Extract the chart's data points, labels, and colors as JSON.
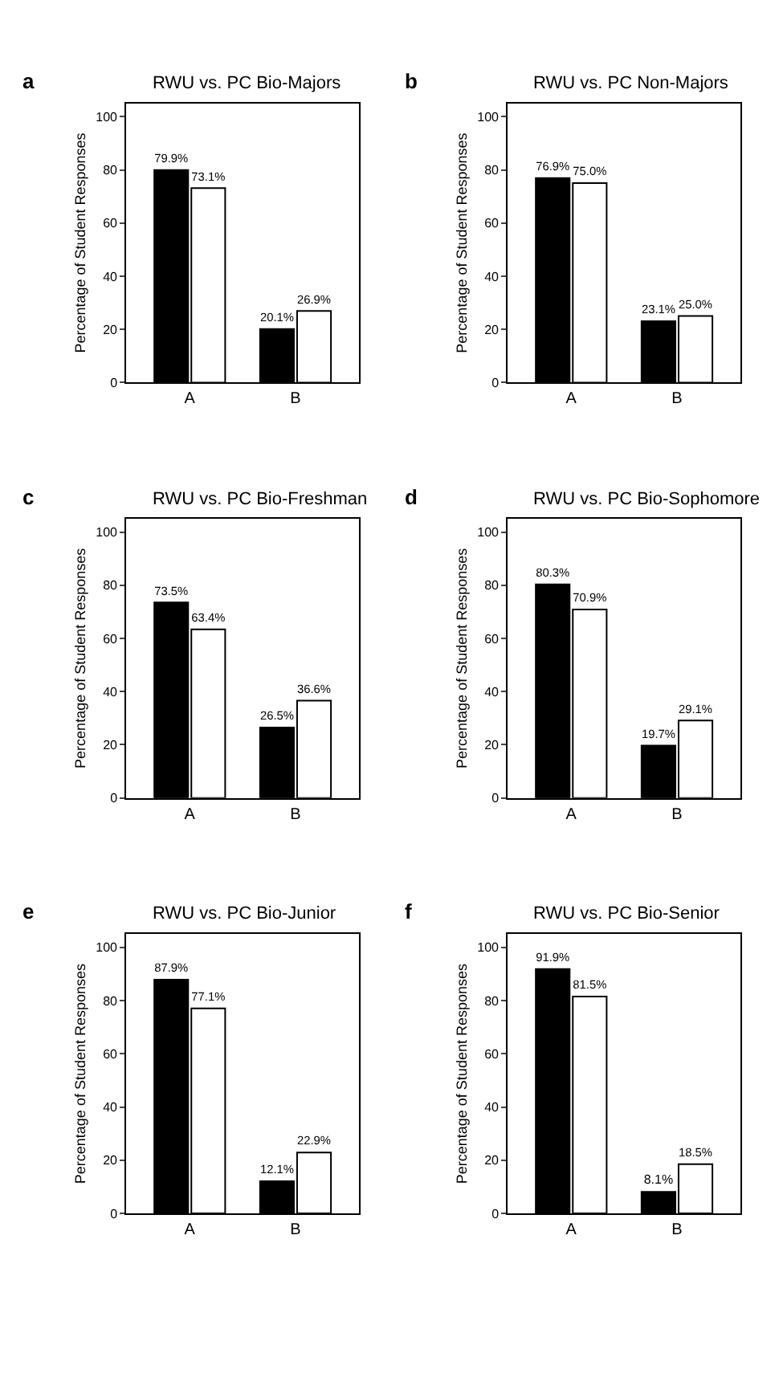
{
  "chart_data": [
    {
      "type": "bar",
      "title": "RWU vs. PC Bio-Majors",
      "annotations": [
        "a"
      ],
      "ylabel": "Percentage of Student Responses",
      "categories": [
        "A",
        "B"
      ],
      "ylim": [
        0,
        105
      ],
      "yticks": [
        0,
        20,
        40,
        60,
        80,
        100
      ],
      "series": [
        {
          "color": "#000000",
          "values": [
            79.9,
            20.1
          ],
          "value_labels": [
            "79.9%",
            "20.1%"
          ]
        },
        {
          "color": "#ffffff",
          "values": [
            73.1,
            26.9
          ],
          "value_labels": [
            "73.1%",
            "26.9%"
          ]
        }
      ]
    },
    {
      "type": "bar",
      "title": "RWU vs. PC Non-Majors",
      "annotations": [
        "b"
      ],
      "ylabel": "Percentage of Student Responses",
      "categories": [
        "A",
        "B"
      ],
      "ylim": [
        0,
        105
      ],
      "yticks": [
        0,
        20,
        40,
        60,
        80,
        100
      ],
      "series": [
        {
          "color": "#000000",
          "values": [
            76.9,
            23.1
          ],
          "value_labels": [
            "76.9%",
            "23.1%"
          ]
        },
        {
          "color": "#ffffff",
          "values": [
            75.0,
            25.0
          ],
          "value_labels": [
            "75.0%",
            "25.0%"
          ]
        }
      ]
    },
    {
      "type": "bar",
      "title": "RWU vs. PC Bio-Freshman",
      "annotations": [
        "c"
      ],
      "ylabel": "Percentage of Student Responses",
      "categories": [
        "A",
        "B"
      ],
      "ylim": [
        0,
        105
      ],
      "yticks": [
        0,
        20,
        40,
        60,
        80,
        100
      ],
      "series": [
        {
          "color": "#000000",
          "values": [
            73.5,
            26.5
          ],
          "value_labels": [
            "73.5%",
            "26.5%"
          ]
        },
        {
          "color": "#ffffff",
          "values": [
            63.4,
            36.6
          ],
          "value_labels": [
            "63.4%",
            "36.6%"
          ]
        }
      ]
    },
    {
      "type": "bar",
      "title": "RWU vs. PC Bio-Sophomore",
      "annotations": [
        "d"
      ],
      "ylabel": "Percentage of Student Responses",
      "categories": [
        "A",
        "B"
      ],
      "ylim": [
        0,
        105
      ],
      "yticks": [
        0,
        20,
        40,
        60,
        80,
        100
      ],
      "series": [
        {
          "color": "#000000",
          "values": [
            80.3,
            19.7
          ],
          "value_labels": [
            "80.3%",
            "19.7%"
          ]
        },
        {
          "color": "#ffffff",
          "values": [
            70.9,
            29.1
          ],
          "value_labels": [
            "70.9%",
            "29.1%"
          ]
        }
      ]
    },
    {
      "type": "bar",
      "title": "RWU vs. PC Bio-Junior",
      "annotations": [
        "e"
      ],
      "ylabel": "Percentage of Student Responses",
      "categories": [
        "A",
        "B"
      ],
      "ylim": [
        0,
        105
      ],
      "yticks": [
        0,
        20,
        40,
        60,
        80,
        100
      ],
      "series": [
        {
          "color": "#000000",
          "values": [
            87.9,
            12.1
          ],
          "value_labels": [
            "87.9%",
            "12.1%"
          ]
        },
        {
          "color": "#ffffff",
          "values": [
            77.1,
            22.9
          ],
          "value_labels": [
            "77.1%",
            "22.9%"
          ]
        }
      ]
    },
    {
      "type": "bar",
      "title": "RWU vs. PC Bio-Senior",
      "annotations": [
        "f"
      ],
      "ylabel": "Percentage of Student Responses",
      "categories": [
        "A",
        "B"
      ],
      "ylim": [
        0,
        105
      ],
      "yticks": [
        0,
        20,
        40,
        60,
        80,
        100
      ],
      "series": [
        {
          "color": "#000000",
          "values": [
            91.9,
            8.1
          ],
          "value_labels": [
            "91.9%",
            "8.1%"
          ]
        },
        {
          "color": "#ffffff",
          "values": [
            81.5,
            18.5
          ],
          "value_labels": [
            "81.5%",
            "18.5%"
          ]
        }
      ]
    }
  ]
}
